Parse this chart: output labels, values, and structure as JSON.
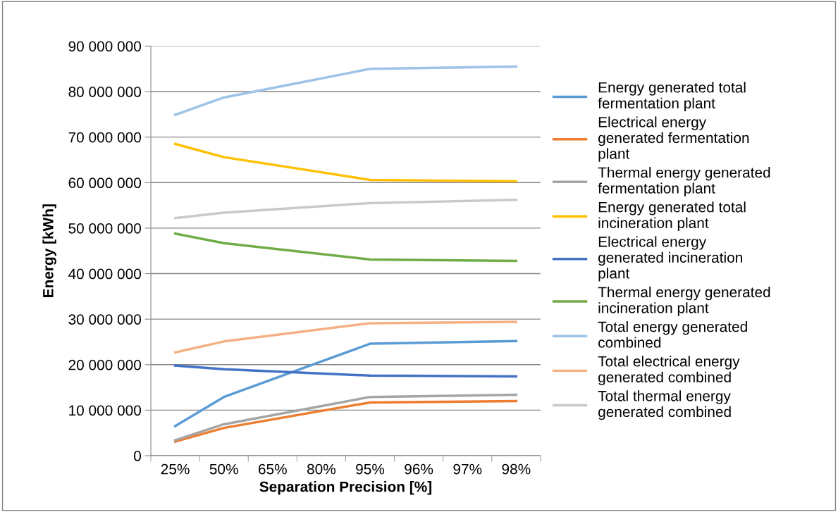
{
  "chart_data": {
    "type": "line",
    "xlabel": "Separation Precision [%]",
    "ylabel": "Energy [kWh]",
    "categories": [
      "25%",
      "50%",
      "65%",
      "80%",
      "95%",
      "96%",
      "97%",
      "98%"
    ],
    "ylim": [
      0,
      90000000
    ],
    "yticks": [
      {
        "value": 0,
        "label": "0"
      },
      {
        "value": 10000000,
        "label": "10 000 000"
      },
      {
        "value": 20000000,
        "label": "20 000 000"
      },
      {
        "value": 30000000,
        "label": "30 000 000"
      },
      {
        "value": 40000000,
        "label": "40 000 000"
      },
      {
        "value": 50000000,
        "label": "50 000 000"
      },
      {
        "value": 60000000,
        "label": "60 000 000"
      },
      {
        "value": 70000000,
        "label": "70 000 000"
      },
      {
        "value": 80000000,
        "label": "80 000 000"
      },
      {
        "value": 90000000,
        "label": "90 000 000"
      }
    ],
    "grid": "y",
    "legend": "right",
    "marker": "none",
    "line_style": "solid",
    "series": [
      {
        "name": "Energy generated total fermentation plant",
        "color": "#5b9bd5",
        "values": [
          6500000,
          12900000,
          null,
          null,
          24600000,
          null,
          null,
          25200000
        ]
      },
      {
        "name": "Electrical energy generated fermentation plant",
        "color": "#ed7d31",
        "values": [
          3100000,
          6100000,
          null,
          null,
          11700000,
          null,
          null,
          12000000
        ]
      },
      {
        "name": "Thermal energy generated fermentation plant",
        "color": "#a5a5a5",
        "values": [
          3400000,
          6900000,
          null,
          null,
          12900000,
          null,
          null,
          13400000
        ]
      },
      {
        "name": "Energy generated total incineration plant",
        "color": "#ffc000",
        "values": [
          68500000,
          65600000,
          null,
          null,
          60600000,
          null,
          null,
          60300000
        ]
      },
      {
        "name": "Electrical energy generated incineration plant",
        "color": "#4472c4",
        "values": [
          19800000,
          19000000,
          null,
          null,
          17600000,
          null,
          null,
          17400000
        ]
      },
      {
        "name": "Thermal energy generated incineration plant",
        "color": "#70ad47",
        "values": [
          48800000,
          46700000,
          null,
          null,
          43100000,
          null,
          null,
          42800000
        ]
      },
      {
        "name": "Total energy generated combined",
        "color": "#9dc3e6",
        "values": [
          74900000,
          78700000,
          null,
          null,
          85000000,
          null,
          null,
          85500000
        ]
      },
      {
        "name": "Total electrical energy generated combined",
        "color": "#f4b183",
        "values": [
          22700000,
          25100000,
          null,
          null,
          29100000,
          null,
          null,
          29400000
        ]
      },
      {
        "name": "Total thermal energy generated combined",
        "color": "#c9c9c9",
        "values": [
          52200000,
          53400000,
          null,
          null,
          55500000,
          null,
          null,
          56200000
        ]
      }
    ]
  }
}
